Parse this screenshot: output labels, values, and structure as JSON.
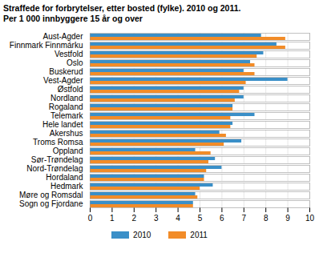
{
  "chart_data": {
    "type": "bar",
    "orientation": "horizontal",
    "title": "Straffede for forbrytelser, etter bosted (fylke). 2010 og 2011.",
    "subtitle": "Per 1 000 innbyggere 15 år og over",
    "categories": [
      "Aust-Agder",
      "Finnmark Finnmárku",
      "Vestfold",
      "Oslo",
      "Buskerud",
      "Vest-Agder",
      "Østfold",
      "Nordland",
      "Rogaland",
      "Telemark",
      "Hele landet",
      "Akershus",
      "Troms Romsa",
      "Oppland",
      "Sør-Trøndelag",
      "Nord-Trøndelag",
      "Hordaland",
      "Hedmark",
      "Møre og Romsdal",
      "Sogn og Fjordane"
    ],
    "series": [
      {
        "name": "2010",
        "color": "#3a8fc8",
        "values": [
          7.8,
          8.5,
          7.9,
          7.3,
          7.0,
          9.0,
          7.0,
          7.0,
          6.5,
          7.5,
          6.5,
          5.9,
          6.9,
          4.8,
          5.7,
          6.0,
          5.2,
          5.6,
          4.8,
          4.7
        ]
      },
      {
        "name": "2011",
        "color": "#f28c28",
        "values": [
          8.9,
          8.9,
          7.6,
          7.5,
          7.5,
          7.1,
          6.8,
          6.6,
          6.5,
          6.4,
          6.4,
          6.2,
          6.1,
          5.5,
          5.4,
          5.3,
          5.2,
          5.0,
          4.9,
          4.7
        ]
      }
    ],
    "xlim": [
      0,
      10
    ],
    "xticks": [
      0,
      1,
      2,
      3,
      4,
      5,
      6,
      7,
      8,
      9,
      10
    ],
    "grid": true,
    "legend": "bottom"
  }
}
